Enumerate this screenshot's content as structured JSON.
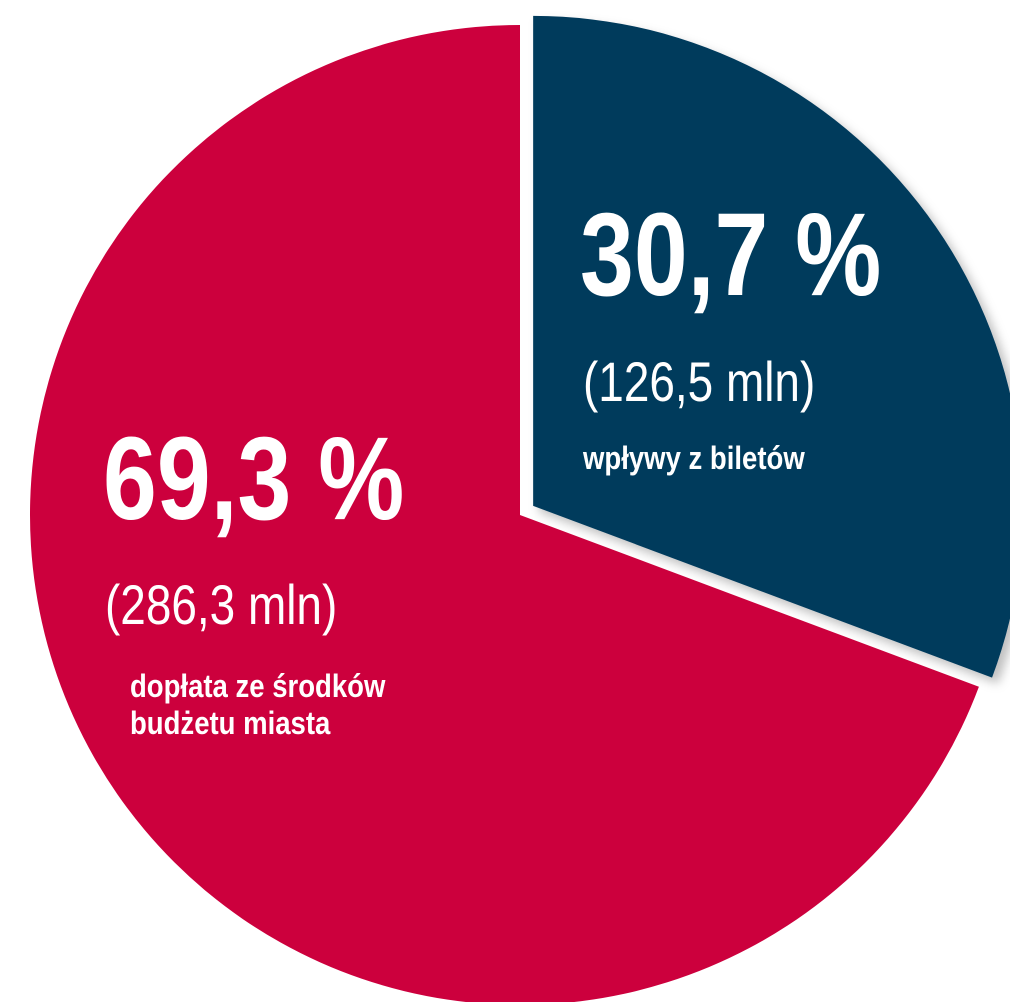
{
  "chart_data": {
    "type": "pie",
    "categories": [
      "wpływy z biletów",
      "dopłata ze środków budżetu miasta"
    ],
    "values": [
      30.7,
      69.3
    ],
    "value_labels": [
      "30,7 %",
      "69,3 %"
    ],
    "amounts": [
      126.5,
      286.3
    ],
    "amount_labels": [
      "(126,5 mln)",
      "(286,3 mln)"
    ],
    "colors": [
      "#003a5c",
      "#cc003d"
    ],
    "exploded": [
      true,
      false
    ]
  }
}
